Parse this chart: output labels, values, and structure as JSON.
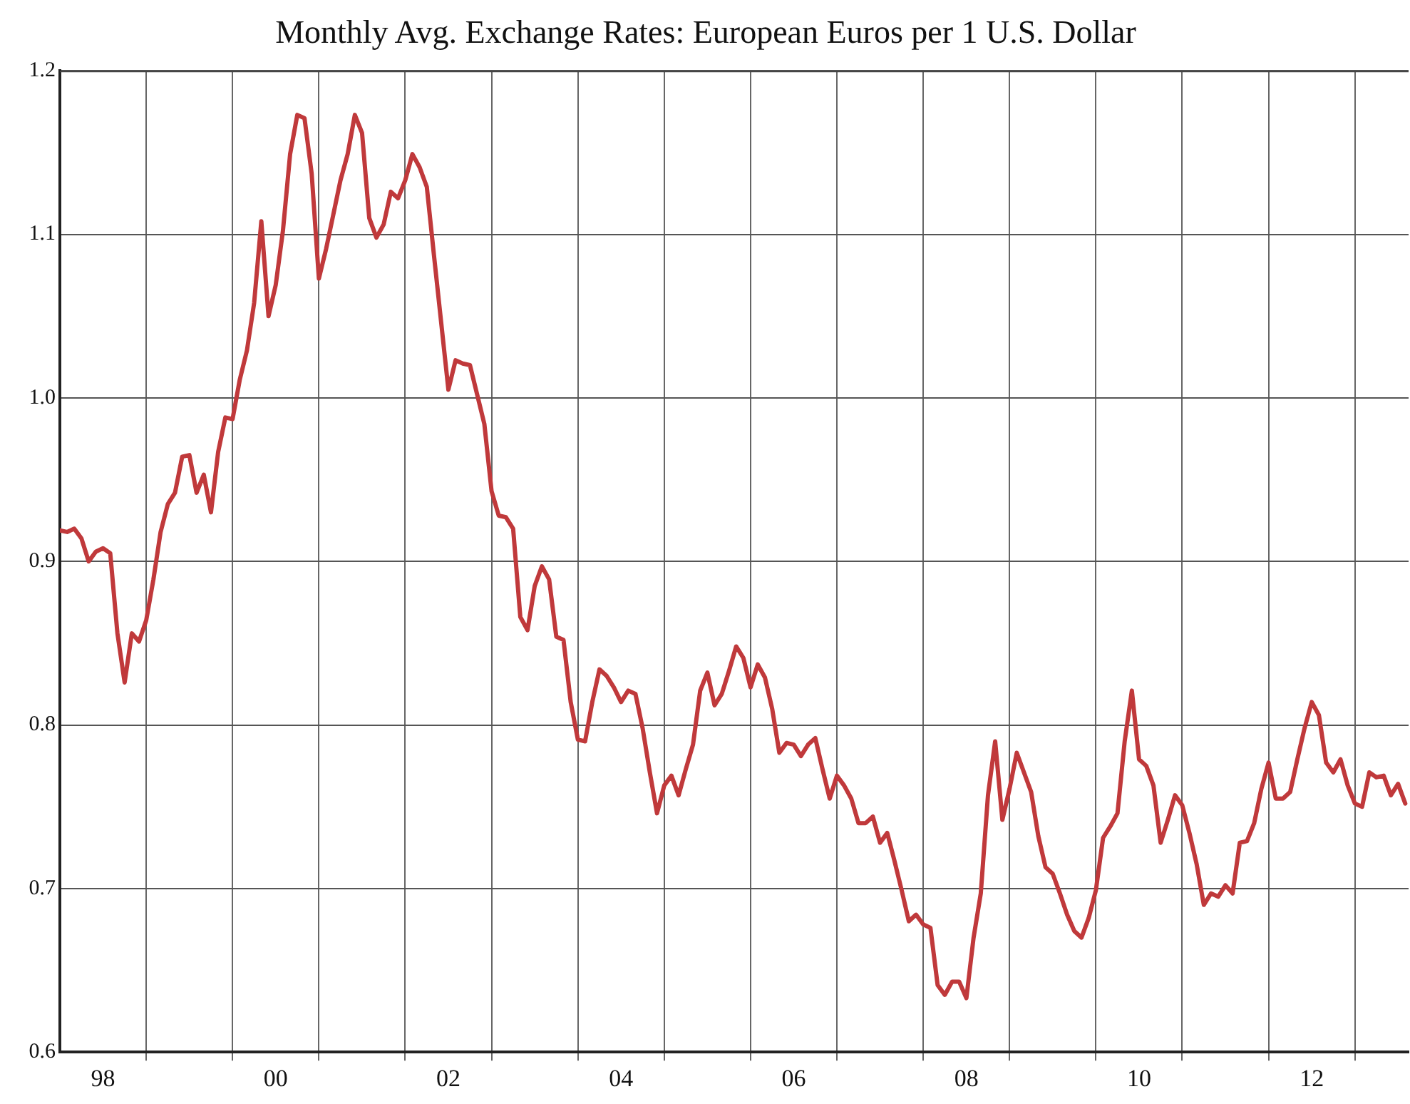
{
  "chart_data": {
    "type": "line",
    "title": "Monthly Avg. Exchange Rates: European Euros per 1 U.S. Dollar",
    "xlim": [
      "1998-01",
      "2013-08-15"
    ],
    "ylim": [
      0.6,
      1.2
    ],
    "xticks": [
      {
        "value": "1998-07",
        "label": "98"
      },
      {
        "value": "1999-01",
        "label": null
      },
      {
        "value": "2000-01",
        "label": null
      },
      {
        "value": "2000-07",
        "label": "00"
      },
      {
        "value": "2001-01",
        "label": null
      },
      {
        "value": "2002-01",
        "label": null
      },
      {
        "value": "2002-07",
        "label": "02"
      },
      {
        "value": "2003-01",
        "label": null
      },
      {
        "value": "2004-01",
        "label": null
      },
      {
        "value": "2004-07",
        "label": "04"
      },
      {
        "value": "2005-01",
        "label": null
      },
      {
        "value": "2006-01",
        "label": null
      },
      {
        "value": "2006-07",
        "label": "06"
      },
      {
        "value": "2007-01",
        "label": null
      },
      {
        "value": "2008-01",
        "label": null
      },
      {
        "value": "2008-07",
        "label": "08"
      },
      {
        "value": "2009-01",
        "label": null
      },
      {
        "value": "2010-01",
        "label": null
      },
      {
        "value": "2010-07",
        "label": "10"
      },
      {
        "value": "2011-01",
        "label": null
      },
      {
        "value": "2012-01",
        "label": null
      },
      {
        "value": "2012-07",
        "label": "12"
      },
      {
        "value": "2013-01",
        "label": null
      }
    ],
    "yticks": [
      0.6,
      0.7,
      0.8,
      0.9,
      {
        "value": 1,
        "label": "1.0"
      },
      1.1,
      1.2
    ],
    "grid": true,
    "legend": false,
    "marker": "none",
    "line_style": "solid",
    "series": [
      {
        "color": "#c0393b",
        "x": [
          "1998-01",
          "1998-02",
          "1998-03",
          "1998-04",
          "1998-05",
          "1998-06",
          "1998-07",
          "1998-08",
          "1998-09",
          "1998-10",
          "1998-11",
          "1998-12",
          "1999-01",
          "1999-02",
          "1999-03",
          "1999-04",
          "1999-05",
          "1999-06",
          "1999-07",
          "1999-08",
          "1999-09",
          "1999-10",
          "1999-11",
          "1999-12",
          "2000-01",
          "2000-02",
          "2000-03",
          "2000-04",
          "2000-05",
          "2000-06",
          "2000-07",
          "2000-08",
          "2000-09",
          "2000-10",
          "2000-11",
          "2000-12",
          "2001-01",
          "2001-02",
          "2001-03",
          "2001-04",
          "2001-05",
          "2001-06",
          "2001-07",
          "2001-08",
          "2001-09",
          "2001-10",
          "2001-11",
          "2001-12",
          "2002-01",
          "2002-02",
          "2002-03",
          "2002-04",
          "2002-05",
          "2002-06",
          "2002-07",
          "2002-08",
          "2002-09",
          "2002-10",
          "2002-12",
          "2003-01",
          "2003-02",
          "2003-03",
          "2003-04",
          "2003-05",
          "2003-06",
          "2003-07",
          "2003-08",
          "2003-09",
          "2003-10",
          "2003-11",
          "2003-12",
          "2004-01",
          "2004-02",
          "2004-03",
          "2004-04",
          "2004-05",
          "2004-06",
          "2004-07",
          "2004-08",
          "2004-09",
          "2004-10",
          "2004-11",
          "2004-12",
          "2005-01",
          "2005-02",
          "2005-03",
          "2005-04",
          "2005-05",
          "2005-06",
          "2005-07",
          "2005-08",
          "2005-09",
          "2005-10",
          "2005-11",
          "2005-12",
          "2006-01",
          "2006-02",
          "2006-03",
          "2006-04",
          "2006-05",
          "2006-06",
          "2006-07",
          "2006-08",
          "2006-09",
          "2006-10",
          "2006-11",
          "2006-12",
          "2007-01",
          "2007-02",
          "2007-03",
          "2007-04",
          "2007-05",
          "2007-06",
          "2007-07",
          "2007-08",
          "2007-09",
          "2007-10",
          "2007-11",
          "2007-12",
          "2008-01",
          "2008-02",
          "2008-03",
          "2008-04",
          "2008-05",
          "2008-06",
          "2008-07",
          "2008-08",
          "2008-09",
          "2008-10",
          "2008-11",
          "2008-12",
          "2009-01",
          "2009-02",
          "2009-03",
          "2009-04",
          "2009-05",
          "2009-06",
          "2009-07",
          "2009-08",
          "2009-09",
          "2009-10",
          "2009-11",
          "2009-12",
          "2010-01",
          "2010-02",
          "2010-03",
          "2010-04",
          "2010-05",
          "2010-06",
          "2010-07",
          "2010-08",
          "2010-09",
          "2010-10",
          "2010-11",
          "2010-12",
          "2011-01",
          "2011-02",
          "2011-03",
          "2011-04",
          "2011-05",
          "2011-06",
          "2011-07",
          "2011-08",
          "2011-09",
          "2011-10",
          "2011-11",
          "2011-12",
          "2012-01",
          "2012-02",
          "2012-03",
          "2012-04",
          "2012-05",
          "2012-06",
          "2012-07",
          "2012-08",
          "2012-09",
          "2012-10",
          "2012-11",
          "2012-12",
          "2013-01",
          "2013-02",
          "2013-03",
          "2013-04",
          "2013-05",
          "2013-06",
          "2013-07",
          "2013-08"
        ],
        "values": [
          0.919,
          0.918,
          0.92,
          0.914,
          0.9,
          0.906,
          0.908,
          0.905,
          0.856,
          0.826,
          0.856,
          0.851,
          0.864,
          0.889,
          0.918,
          0.935,
          0.942,
          0.964,
          0.965,
          0.942,
          0.953,
          0.93,
          0.967,
          0.988,
          0.987,
          1.011,
          1.029,
          1.058,
          1.108,
          1.05,
          1.069,
          1.102,
          1.149,
          1.173,
          1.171,
          1.137,
          1.073,
          1.091,
          1.112,
          1.133,
          1.149,
          1.173,
          1.162,
          1.11,
          1.098,
          1.106,
          1.126,
          1.122,
          1.133,
          1.149,
          1.141,
          1.129,
          1.087,
          1.046,
          1.005,
          1.023,
          1.021,
          1.02,
          0.984,
          0.943,
          0.928,
          0.927,
          0.92,
          0.866,
          0.858,
          0.885,
          0.897,
          0.889,
          0.854,
          0.852,
          0.814,
          0.791,
          0.79,
          0.814,
          0.834,
          0.83,
          0.823,
          0.814,
          0.821,
          0.819,
          0.798,
          0.771,
          0.746,
          0.763,
          0.769,
          0.757,
          0.773,
          0.788,
          0.821,
          0.832,
          0.812,
          0.819,
          0.833,
          0.848,
          0.841,
          0.823,
          0.837,
          0.829,
          0.81,
          0.783,
          0.789,
          0.788,
          0.781,
          0.788,
          0.792,
          0.773,
          0.755,
          0.769,
          0.763,
          0.755,
          0.74,
          0.74,
          0.744,
          0.728,
          0.734,
          0.717,
          0.699,
          0.68,
          0.684,
          0.678,
          0.676,
          0.641,
          0.635,
          0.643,
          0.643,
          0.633,
          0.67,
          0.697,
          0.757,
          0.79,
          0.742,
          0.761,
          0.783,
          0.771,
          0.759,
          0.732,
          0.713,
          0.709,
          0.697,
          0.684,
          0.674,
          0.67,
          0.682,
          0.699,
          0.731,
          0.738,
          0.746,
          0.79,
          0.821,
          0.779,
          0.775,
          0.763,
          0.728,
          0.742,
          0.757,
          0.751,
          0.734,
          0.715,
          0.69,
          0.697,
          0.695,
          0.702,
          0.697,
          0.728,
          0.729,
          0.74,
          0.761,
          0.777,
          0.755,
          0.755,
          0.759,
          0.779,
          0.798,
          0.814,
          0.806,
          0.777,
          0.771,
          0.779,
          0.763,
          0.752,
          0.75,
          0.771,
          0.768,
          0.769,
          0.757,
          0.764,
          0.752
        ]
      }
    ]
  }
}
